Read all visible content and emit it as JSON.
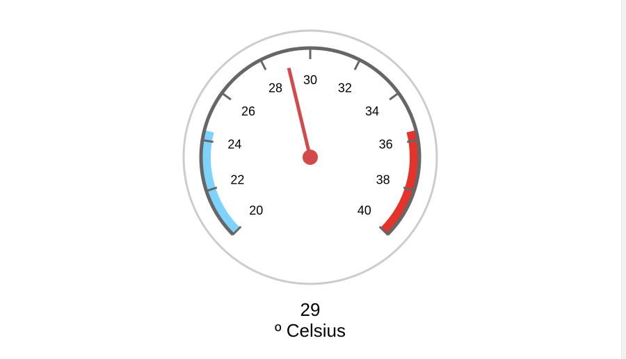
{
  "chart_data": {
    "type": "gauge",
    "min": 20,
    "max": 40,
    "value": 29,
    "value_label": "29",
    "unit_label": "º Celsius",
    "tick_labels": [
      "20",
      "22",
      "24",
      "26",
      "28",
      "30",
      "32",
      "34",
      "36",
      "38",
      "40"
    ],
    "tick_values": [
      20,
      22,
      24,
      26,
      28,
      30,
      32,
      34,
      36,
      38,
      40
    ],
    "bands": [
      {
        "from": 20,
        "to": 24.4,
        "color": "#7dd3fb"
      },
      {
        "from": 35.6,
        "to": 40,
        "color": "#e4332a"
      }
    ],
    "colors": {
      "scale": "#666666",
      "outer_ring": "#cccccc",
      "needle": "#d24a4a",
      "scrollbar": "#f1f1f1"
    }
  }
}
